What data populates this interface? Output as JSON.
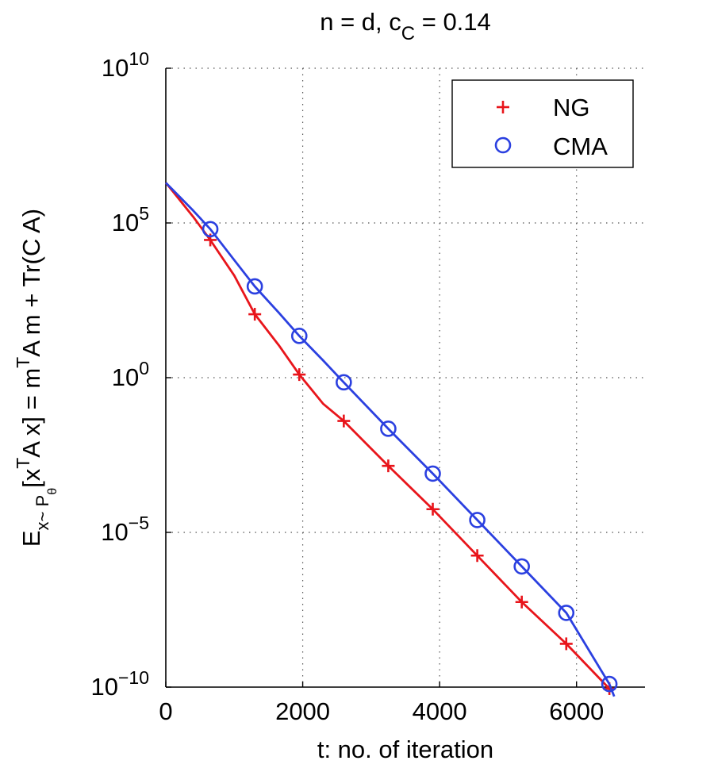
{
  "chart_data": {
    "type": "line",
    "title": {
      "main": "n = d, c",
      "sub": "C",
      "rest": " = 0.14"
    },
    "xlabel": "t: no. of iteration",
    "ylabel": {
      "base": "E",
      "sub1": "x~ P",
      "sub2": "θ",
      "bracket_open": "[x",
      "sup1": "T",
      "mid": "A x] = m",
      "sup2": "T",
      "end": "A m + Tr(C A)"
    },
    "xscale": "linear",
    "yscale": "log",
    "xlim": [
      0,
      7000
    ],
    "ylim_exponents": [
      -10,
      10
    ],
    "xticks": [
      0,
      2000,
      4000,
      6000
    ],
    "xtick_labels": [
      "0",
      "2000",
      "4000",
      "6000"
    ],
    "yticks": [
      {
        "base": "10",
        "exp": "10",
        "log10": 10
      },
      {
        "base": "10",
        "exp": "5",
        "log10": 5
      },
      {
        "base": "10",
        "exp": "0",
        "log10": 0
      },
      {
        "base": "10",
        "exp": "−5",
        "log10": -5
      },
      {
        "base": "10",
        "exp": "−10",
        "log10": -10
      }
    ],
    "grid": true,
    "legend": {
      "position": "top-right"
    },
    "series": [
      {
        "name": "NG",
        "color": "#e8151b",
        "marker": "plus",
        "curve_log10": [
          [
            0,
            6.3
          ],
          [
            200,
            5.75
          ],
          [
            400,
            5.2
          ],
          [
            650,
            4.45
          ],
          [
            1000,
            3.3
          ],
          [
            1300,
            2.05
          ],
          [
            1650,
            1.05
          ],
          [
            1950,
            0.1
          ],
          [
            2300,
            -0.85
          ],
          [
            2600,
            -1.4
          ],
          [
            3250,
            -2.85
          ],
          [
            3900,
            -4.25
          ],
          [
            4550,
            -5.75
          ],
          [
            5200,
            -7.25
          ],
          [
            5850,
            -8.6
          ],
          [
            6480,
            -10.05
          ]
        ],
        "markers_log10": [
          [
            650,
            4.45
          ],
          [
            1300,
            2.05
          ],
          [
            1950,
            0.1
          ],
          [
            2600,
            -1.4
          ],
          [
            3250,
            -2.85
          ],
          [
            3900,
            -4.25
          ],
          [
            4550,
            -5.75
          ],
          [
            5200,
            -7.25
          ],
          [
            5850,
            -8.6
          ],
          [
            6480,
            -10.05
          ]
        ]
      },
      {
        "name": "CMA",
        "color": "#2b40e0",
        "marker": "circle",
        "curve_log10": [
          [
            0,
            6.3
          ],
          [
            200,
            5.85
          ],
          [
            400,
            5.4
          ],
          [
            650,
            4.8
          ],
          [
            1000,
            3.8
          ],
          [
            1300,
            2.95
          ],
          [
            1650,
            2.1
          ],
          [
            1950,
            1.35
          ],
          [
            2300,
            0.55
          ],
          [
            2600,
            -0.15
          ],
          [
            3250,
            -1.65
          ],
          [
            3900,
            -3.1
          ],
          [
            4550,
            -4.6
          ],
          [
            5200,
            -6.1
          ],
          [
            5850,
            -7.6
          ],
          [
            6480,
            -9.9
          ],
          [
            6550,
            -10.3
          ]
        ],
        "markers_log10": [
          [
            650,
            4.8
          ],
          [
            1300,
            2.95
          ],
          [
            1950,
            1.35
          ],
          [
            2600,
            -0.15
          ],
          [
            3250,
            -1.65
          ],
          [
            3900,
            -3.1
          ],
          [
            4550,
            -4.6
          ],
          [
            5200,
            -6.1
          ],
          [
            5850,
            -7.6
          ],
          [
            6480,
            -9.9
          ]
        ]
      }
    ]
  }
}
